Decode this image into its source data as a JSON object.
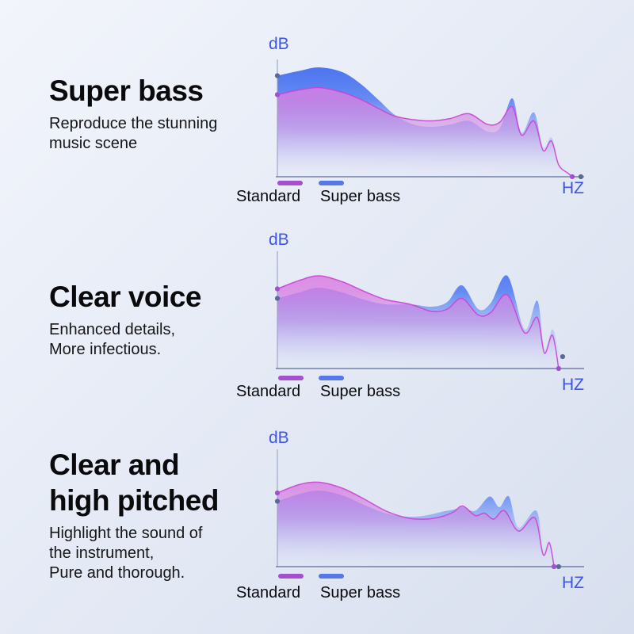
{
  "background": {
    "top_color": "#f2f5fb",
    "bottom_color": "#d8dfee"
  },
  "colors": {
    "axis": "#5d6b96",
    "y_axis": "#99a2c0",
    "dot_purple": "#a24fd2",
    "dot_slate": "#5a6a96",
    "label_blue": "#3d56e6",
    "standard_stroke": "#cb42d6"
  },
  "sections": [
    {
      "title_lines": [
        "Super bass",
        ""
      ],
      "subtitle_lines": [
        "Reproduce the stunning",
        "music scene",
        ""
      ]
    },
    {
      "title_lines": [
        "Clear voice",
        ""
      ],
      "subtitle_lines": [
        "Enhanced details,",
        "More infectious.",
        ""
      ]
    },
    {
      "title_lines": [
        "Clear and",
        "high pitched"
      ],
      "subtitle_lines": [
        "Highlight the sound of",
        "the instrument,",
        "Pure and thorough."
      ]
    }
  ],
  "chart_data": [
    {
      "type": "area",
      "title": "Super bass",
      "ylabel": "dB",
      "xlabel": "HZ",
      "x_domain": [
        0,
        100
      ],
      "y_domain": [
        0,
        100
      ],
      "grid": false,
      "legend_position": "bottom-left",
      "legend": [
        {
          "label": "Standard",
          "color": "#a44fd0"
        },
        {
          "label": "Super bass",
          "color": "#5577e8"
        }
      ],
      "series": [
        {
          "name": "Super bass",
          "color": "#4a71ec",
          "points": [
            [
              0,
              85
            ],
            [
              7,
              89
            ],
            [
              13.5,
              92
            ],
            [
              21,
              88
            ],
            [
              27,
              78
            ],
            [
              33,
              64
            ],
            [
              38,
              52
            ],
            [
              44,
              44
            ],
            [
              50,
              42
            ],
            [
              56,
              44
            ],
            [
              62,
              47
            ],
            [
              68,
              38
            ],
            [
              72,
              41
            ],
            [
              76,
              66
            ],
            [
              79,
              37
            ],
            [
              83,
              54
            ],
            [
              86,
              25
            ],
            [
              88.7,
              33
            ],
            [
              91,
              13
            ],
            [
              94,
              4
            ],
            [
              96.5,
              1
            ]
          ]
        },
        {
          "name": "Standard",
          "color": "#d44fd8",
          "points": [
            [
              0,
              69
            ],
            [
              7,
              73
            ],
            [
              13.5,
              75
            ],
            [
              21,
              71
            ],
            [
              27,
              65
            ],
            [
              33,
              57
            ],
            [
              38,
              51
            ],
            [
              44,
              48
            ],
            [
              50,
              47
            ],
            [
              56,
              49
            ],
            [
              62,
              53
            ],
            [
              68,
              44
            ],
            [
              72,
              46
            ],
            [
              76,
              59
            ],
            [
              79,
              35
            ],
            [
              83,
              47
            ],
            [
              86,
              22
            ],
            [
              88.7,
              30
            ],
            [
              91,
              10
            ],
            [
              94,
              3
            ],
            [
              95.4,
              0
            ]
          ]
        }
      ],
      "dots": [
        {
          "x": 0,
          "y": 85,
          "color": "slate"
        },
        {
          "x": 0,
          "y": 69,
          "color": "purple"
        },
        {
          "x": 95.4,
          "y": 0,
          "color": "purple"
        },
        {
          "x": 98.2,
          "y": 0,
          "color": "slate"
        }
      ]
    },
    {
      "type": "area",
      "title": "Clear voice",
      "ylabel": "dB",
      "xlabel": "HZ",
      "x_domain": [
        0,
        100
      ],
      "y_domain": [
        0,
        100
      ],
      "grid": false,
      "legend_position": "bottom-left",
      "legend": [
        {
          "label": "Standard",
          "color": "#a44fd0"
        },
        {
          "label": "Super bass",
          "color": "#5577e8"
        }
      ],
      "series": [
        {
          "name": "Super bass",
          "color": "#4a71ec",
          "points": [
            [
              0,
              59
            ],
            [
              7,
              64
            ],
            [
              13.5,
              68
            ],
            [
              21,
              64
            ],
            [
              28,
              58
            ],
            [
              35,
              54
            ],
            [
              43,
              54
            ],
            [
              50,
              52
            ],
            [
              55,
              56
            ],
            [
              59.7,
              70
            ],
            [
              65,
              50
            ],
            [
              69,
              55
            ],
            [
              74.4,
              78
            ],
            [
              80,
              33
            ],
            [
              84.1,
              57
            ],
            [
              86.4,
              17
            ],
            [
              89,
              33
            ],
            [
              91,
              15
            ],
            [
              92.3,
              10
            ]
          ]
        },
        {
          "name": "Standard",
          "color": "#d44fd8",
          "points": [
            [
              0,
              67
            ],
            [
              7,
              74
            ],
            [
              13.5,
              78
            ],
            [
              21,
              73
            ],
            [
              28,
              65
            ],
            [
              35,
              58
            ],
            [
              43,
              54
            ],
            [
              50,
              48
            ],
            [
              55,
              50
            ],
            [
              59.7,
              59
            ],
            [
              65,
              45
            ],
            [
              69,
              47
            ],
            [
              74.4,
              62
            ],
            [
              80,
              30
            ],
            [
              84.1,
              43
            ],
            [
              86.4,
              13
            ],
            [
              89,
              28
            ],
            [
              91,
              0
            ]
          ]
        }
      ],
      "dots": [
        {
          "x": 0,
          "y": 67,
          "color": "purple"
        },
        {
          "x": 0,
          "y": 59,
          "color": "slate"
        },
        {
          "x": 91,
          "y": 0,
          "color": "purple"
        },
        {
          "x": 92.3,
          "y": 10,
          "color": "slate"
        }
      ]
    },
    {
      "type": "area",
      "title": "Clear and high pitched",
      "ylabel": "dB",
      "xlabel": "HZ",
      "x_domain": [
        0,
        100
      ],
      "y_domain": [
        0,
        100
      ],
      "grid": false,
      "legend_position": "bottom-left",
      "legend": [
        {
          "label": "Standard",
          "color": "#a44fd0"
        },
        {
          "label": "Super bass",
          "color": "#5577e8"
        }
      ],
      "series": [
        {
          "name": "Super bass",
          "color": "#4a71ec",
          "points": [
            [
              0,
              55
            ],
            [
              7,
              61
            ],
            [
              13.5,
              64
            ],
            [
              21,
              60
            ],
            [
              28,
              52
            ],
            [
              35,
              45
            ],
            [
              42,
              42
            ],
            [
              48,
              43
            ],
            [
              53,
              46
            ],
            [
              57,
              48
            ],
            [
              60,
              50
            ],
            [
              64,
              47
            ],
            [
              68.7,
              59
            ],
            [
              71.8,
              50
            ],
            [
              74.9,
              59
            ],
            [
              78,
              33
            ],
            [
              83.8,
              47
            ],
            [
              86,
              15
            ],
            [
              88,
              22
            ],
            [
              90,
              1
            ]
          ]
        },
        {
          "name": "Standard",
          "color": "#d44fd8",
          "points": [
            [
              0,
              62
            ],
            [
              7,
              69
            ],
            [
              13.5,
              71
            ],
            [
              21,
              66
            ],
            [
              28,
              57
            ],
            [
              35,
              47
            ],
            [
              42,
              41
            ],
            [
              48,
              40
            ],
            [
              53,
              42
            ],
            [
              57,
              46
            ],
            [
              60,
              51
            ],
            [
              64,
              43
            ],
            [
              67,
              45
            ],
            [
              70,
              40
            ],
            [
              73.5,
              47
            ],
            [
              78,
              30
            ],
            [
              83.3,
              41
            ],
            [
              86,
              10
            ],
            [
              88,
              20
            ],
            [
              89.5,
              0
            ]
          ]
        }
      ],
      "dots": [
        {
          "x": 0,
          "y": 62,
          "color": "purple"
        },
        {
          "x": 0,
          "y": 55,
          "color": "slate"
        },
        {
          "x": 89.5,
          "y": 0,
          "color": "purple"
        },
        {
          "x": 91,
          "y": 0,
          "color": "slate"
        }
      ]
    }
  ]
}
